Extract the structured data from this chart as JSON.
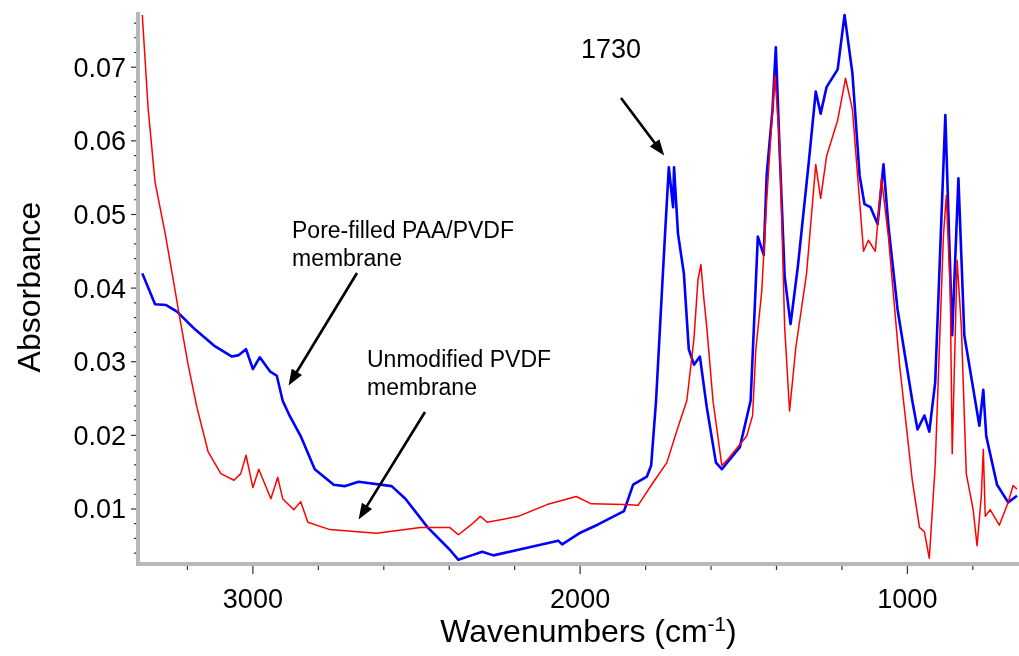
{
  "chart_data": {
    "type": "line",
    "xlabel": "Wavenumbers (cm$^{-1}$)",
    "ylabel": "Absorbance",
    "xlim": [
      3345,
      665
    ],
    "ylim": [
      0.0028,
      0.0775
    ],
    "xticks": [
      {
        "value": 3200,
        "label": null
      },
      3000,
      {
        "value": 2800,
        "label": null
      },
      {
        "value": 2600,
        "label": null
      },
      {
        "value": 2400,
        "label": null
      },
      {
        "value": 2200,
        "label": null
      },
      2000,
      {
        "value": 1800,
        "label": null
      },
      {
        "value": 1600,
        "label": null
      },
      {
        "value": 1400,
        "label": null
      },
      {
        "value": 1200,
        "label": null
      },
      1000,
      {
        "value": 800,
        "label": null
      }
    ],
    "yticks": [
      {
        "value": 0.004,
        "label": null
      },
      {
        "value": 0.006,
        "label": null
      },
      {
        "value": 0.008,
        "label": null
      },
      0.01,
      {
        "value": 0.012,
        "label": null
      },
      {
        "value": 0.014,
        "label": null
      },
      {
        "value": 0.016,
        "label": null
      },
      {
        "value": 0.018,
        "label": null
      },
      0.02,
      {
        "value": 0.022,
        "label": null
      },
      {
        "value": 0.024,
        "label": null
      },
      {
        "value": 0.026,
        "label": null
      },
      {
        "value": 0.028,
        "label": null
      },
      0.03,
      {
        "value": 0.032,
        "label": null
      },
      {
        "value": 0.034,
        "label": null
      },
      {
        "value": 0.036,
        "label": null
      },
      {
        "value": 0.038,
        "label": null
      },
      0.04,
      {
        "value": 0.042,
        "label": null
      },
      {
        "value": 0.044,
        "label": null
      },
      {
        "value": 0.046,
        "label": null
      },
      {
        "value": 0.048,
        "label": null
      },
      0.05,
      {
        "value": 0.052,
        "label": null
      },
      {
        "value": 0.054,
        "label": null
      },
      {
        "value": 0.056,
        "label": null
      },
      {
        "value": 0.058,
        "label": null
      },
      0.06,
      {
        "value": 0.062,
        "label": null
      },
      {
        "value": 0.064,
        "label": null
      },
      {
        "value": 0.066,
        "label": null
      },
      {
        "value": 0.068,
        "label": null
      },
      0.07,
      {
        "value": 0.072,
        "label": null
      },
      {
        "value": 0.074,
        "label": null
      },
      {
        "value": 0.076,
        "label": null
      }
    ],
    "annotations": [
      "1730",
      "Pore-filled PAA/PVDF\nmembrane",
      "Unmodified PVDF\nmembrane"
    ],
    "series": [
      {
        "color": "#0000ff",
        "x": [
          3338,
          3299,
          3265,
          3232,
          3177,
          3119,
          3064,
          3043,
          3021,
          3000,
          2979,
          2948,
          2927,
          2909,
          2887,
          2854,
          2811,
          2753,
          2720,
          2677,
          2576,
          2534,
          2466,
          2399,
          2372,
          2332,
          2299,
          2265,
          2155,
          2067,
          2055,
          2003,
          1945,
          1866,
          1838,
          1796,
          1783,
          1768,
          1750,
          1741,
          1729,
          1716,
          1713,
          1701,
          1683,
          1668,
          1652,
          1634,
          1613,
          1585,
          1567,
          1512,
          1479,
          1469,
          1457,
          1439,
          1430,
          1412,
          1402,
          1390,
          1375,
          1357,
          1335,
          1302,
          1280,
          1265,
          1247,
          1213,
          1192,
          1168,
          1146,
          1131,
          1113,
          1091,
          1073,
          1058,
          1030,
          985,
          969,
          948,
          933,
          915,
          884,
          863,
          844,
          826,
          802,
          780,
          768,
          759,
          726,
          692,
          665
        ],
        "values": [
          0.042,
          0.0378,
          0.0377,
          0.0368,
          0.0344,
          0.0322,
          0.0307,
          0.0309,
          0.0317,
          0.029,
          0.0306,
          0.0287,
          0.0281,
          0.0247,
          0.0226,
          0.0199,
          0.0154,
          0.0133,
          0.0131,
          0.0137,
          0.0131,
          0.0114,
          0.0075,
          0.0045,
          0.0031,
          0.0037,
          0.0042,
          0.0037,
          0.0048,
          0.0057,
          0.0052,
          0.0067,
          0.0079,
          0.0097,
          0.0133,
          0.0144,
          0.0159,
          0.0247,
          0.0396,
          0.047,
          0.0564,
          0.051,
          0.0564,
          0.0474,
          0.042,
          0.0317,
          0.0296,
          0.0307,
          0.0238,
          0.0163,
          0.0154,
          0.0184,
          0.0247,
          0.0347,
          0.047,
          0.0445,
          0.0553,
          0.0643,
          0.0727,
          0.0583,
          0.0416,
          0.0351,
          0.0428,
          0.0568,
          0.0667,
          0.0637,
          0.0673,
          0.0697,
          0.0771,
          0.0692,
          0.0553,
          0.0514,
          0.051,
          0.0487,
          0.0568,
          0.0485,
          0.0371,
          0.0247,
          0.0208,
          0.0227,
          0.0205,
          0.0272,
          0.0635,
          0.0336,
          0.0549,
          0.0336,
          0.0272,
          0.0213,
          0.0262,
          0.0199,
          0.0133,
          0.0109,
          0.0118
        ]
      },
      {
        "color": "#ff0000",
        "x": [
          3338,
          3320,
          3299,
          3268,
          3241,
          3226,
          3198,
          3171,
          3137,
          3098,
          3058,
          3037,
          3021,
          3000,
          2982,
          2945,
          2924,
          2909,
          2875,
          2854,
          2832,
          2765,
          2622,
          2488,
          2399,
          2372,
          2332,
          2305,
          2284,
          2189,
          2101,
          2012,
          1966,
          1866,
          1823,
          1777,
          1735,
          1701,
          1674,
          1652,
          1640,
          1631,
          1622,
          1613,
          1594,
          1567,
          1546,
          1491,
          1473,
          1463,
          1445,
          1430,
          1412,
          1405,
          1390,
          1375,
          1360,
          1341,
          1308,
          1280,
          1265,
          1247,
          1213,
          1189,
          1168,
          1134,
          1119,
          1098,
          1079,
          1058,
          1024,
          985,
          963,
          948,
          933,
          915,
          890,
          881,
          869,
          863,
          848,
          835,
          820,
          799,
          787,
          774,
          768,
          762,
          747,
          719,
          692,
          677,
          665
        ],
        "values": [
          0.0771,
          0.0643,
          0.0544,
          0.0474,
          0.0405,
          0.0366,
          0.0296,
          0.0238,
          0.0178,
          0.0148,
          0.0139,
          0.0148,
          0.0173,
          0.0129,
          0.0154,
          0.0114,
          0.0143,
          0.0114,
          0.0099,
          0.011,
          0.0082,
          0.0072,
          0.0067,
          0.0075,
          0.0075,
          0.0065,
          0.0079,
          0.009,
          0.0082,
          0.009,
          0.0106,
          0.0117,
          0.0107,
          0.0106,
          0.0105,
          0.0136,
          0.0163,
          0.0211,
          0.0247,
          0.0332,
          0.0411,
          0.0432,
          0.0386,
          0.0347,
          0.0247,
          0.0159,
          0.0169,
          0.0199,
          0.0227,
          0.0317,
          0.0396,
          0.0519,
          0.0643,
          0.0689,
          0.0594,
          0.0347,
          0.0233,
          0.0319,
          0.042,
          0.0568,
          0.0522,
          0.0579,
          0.0628,
          0.0685,
          0.0643,
          0.045,
          0.0465,
          0.045,
          0.0549,
          0.047,
          0.0296,
          0.0139,
          0.0075,
          0.0069,
          0.0033,
          0.0159,
          0.047,
          0.0526,
          0.0396,
          0.0175,
          0.0438,
          0.0347,
          0.0148,
          0.0099,
          0.005,
          0.0118,
          0.0181,
          0.009,
          0.0099,
          0.0078,
          0.0109,
          0.0132,
          0.0127
        ]
      }
    ]
  }
}
